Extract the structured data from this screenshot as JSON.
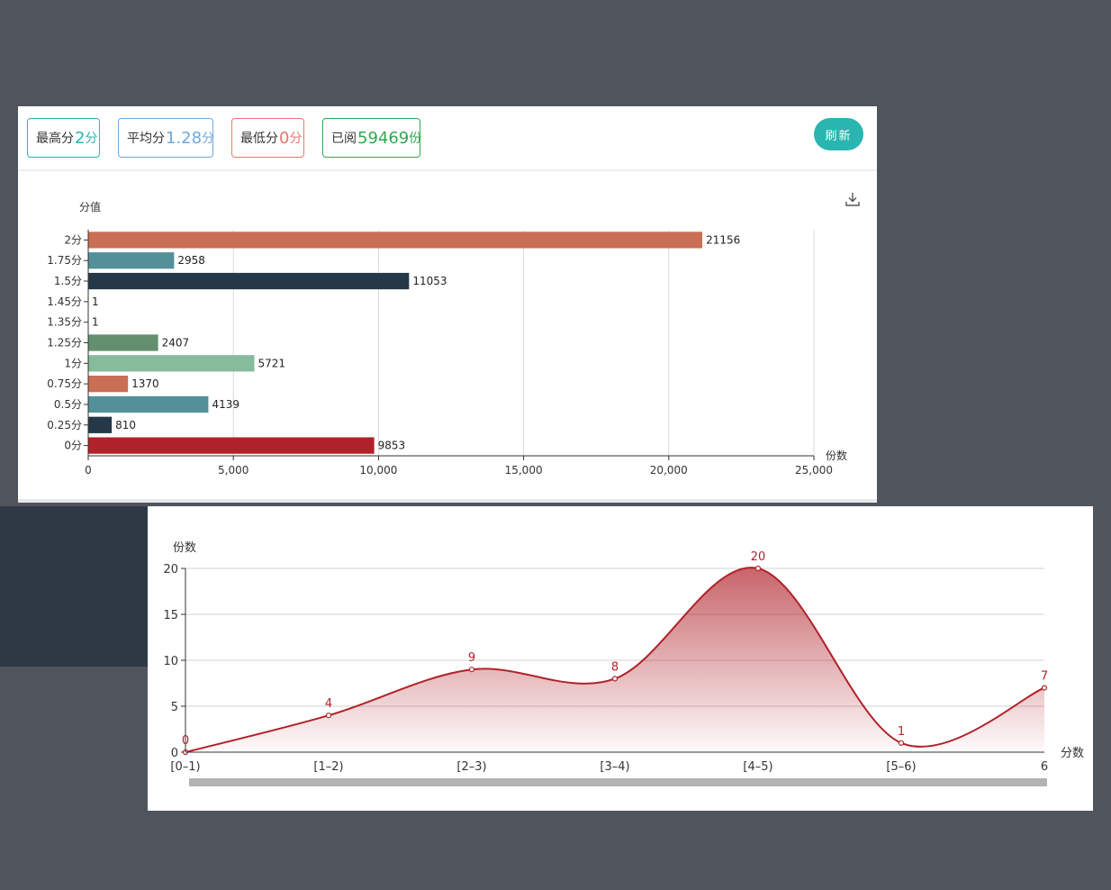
{
  "stats": {
    "max_label": "最高分",
    "max_value": "2",
    "max_unit": "分",
    "max_color": "#2ab5b0",
    "avg_label": "平均分",
    "avg_value": "1.28",
    "avg_unit": "分",
    "avg_color": "#6fa8dc",
    "min_label": "最低分",
    "min_value": "0",
    "min_unit": "分",
    "min_color": "#e9776a",
    "read_label": "已阅",
    "read_value": "59469",
    "read_unit": "份",
    "read_color": "#2fa84f"
  },
  "toolbar": {
    "refresh_label": "刷新",
    "download_icon": "download-icon"
  },
  "chart_data": [
    {
      "type": "bar",
      "orientation": "horizontal",
      "ylabel": "分值",
      "xlabel": "份数",
      "categories": [
        "2分",
        "1.75分",
        "1.5分",
        "1.45分",
        "1.35分",
        "1.25分",
        "1分",
        "0.75分",
        "0.5分",
        "0.25分",
        "0分"
      ],
      "values": [
        21156,
        2958,
        11053,
        1,
        1,
        2407,
        5721,
        1370,
        4139,
        810,
        9853
      ],
      "colors": [
        "#c96f53",
        "#54909a",
        "#253847",
        "#253847",
        "#253847",
        "#638f6e",
        "#86bb9b",
        "#c96f53",
        "#54909a",
        "#253847",
        "#b0222a"
      ],
      "xlim": [
        0,
        25000
      ],
      "xticks": [
        "0",
        "5,000",
        "10,000",
        "15,000",
        "20,000",
        "25,000"
      ],
      "grid": true
    },
    {
      "type": "area",
      "ylabel": "份数",
      "xlabel": "分数",
      "categories": [
        "[0–1)",
        "[1–2)",
        "[2–3)",
        "[3–4)",
        "[4–5)",
        "[5–6)",
        "6"
      ],
      "values": [
        0,
        4,
        9,
        8,
        20,
        1,
        7
      ],
      "ylim": [
        0,
        20
      ],
      "yticks": [
        "0",
        "5",
        "10",
        "15",
        "20"
      ],
      "color": "#b0222a",
      "smooth": true,
      "grid": true
    }
  ]
}
